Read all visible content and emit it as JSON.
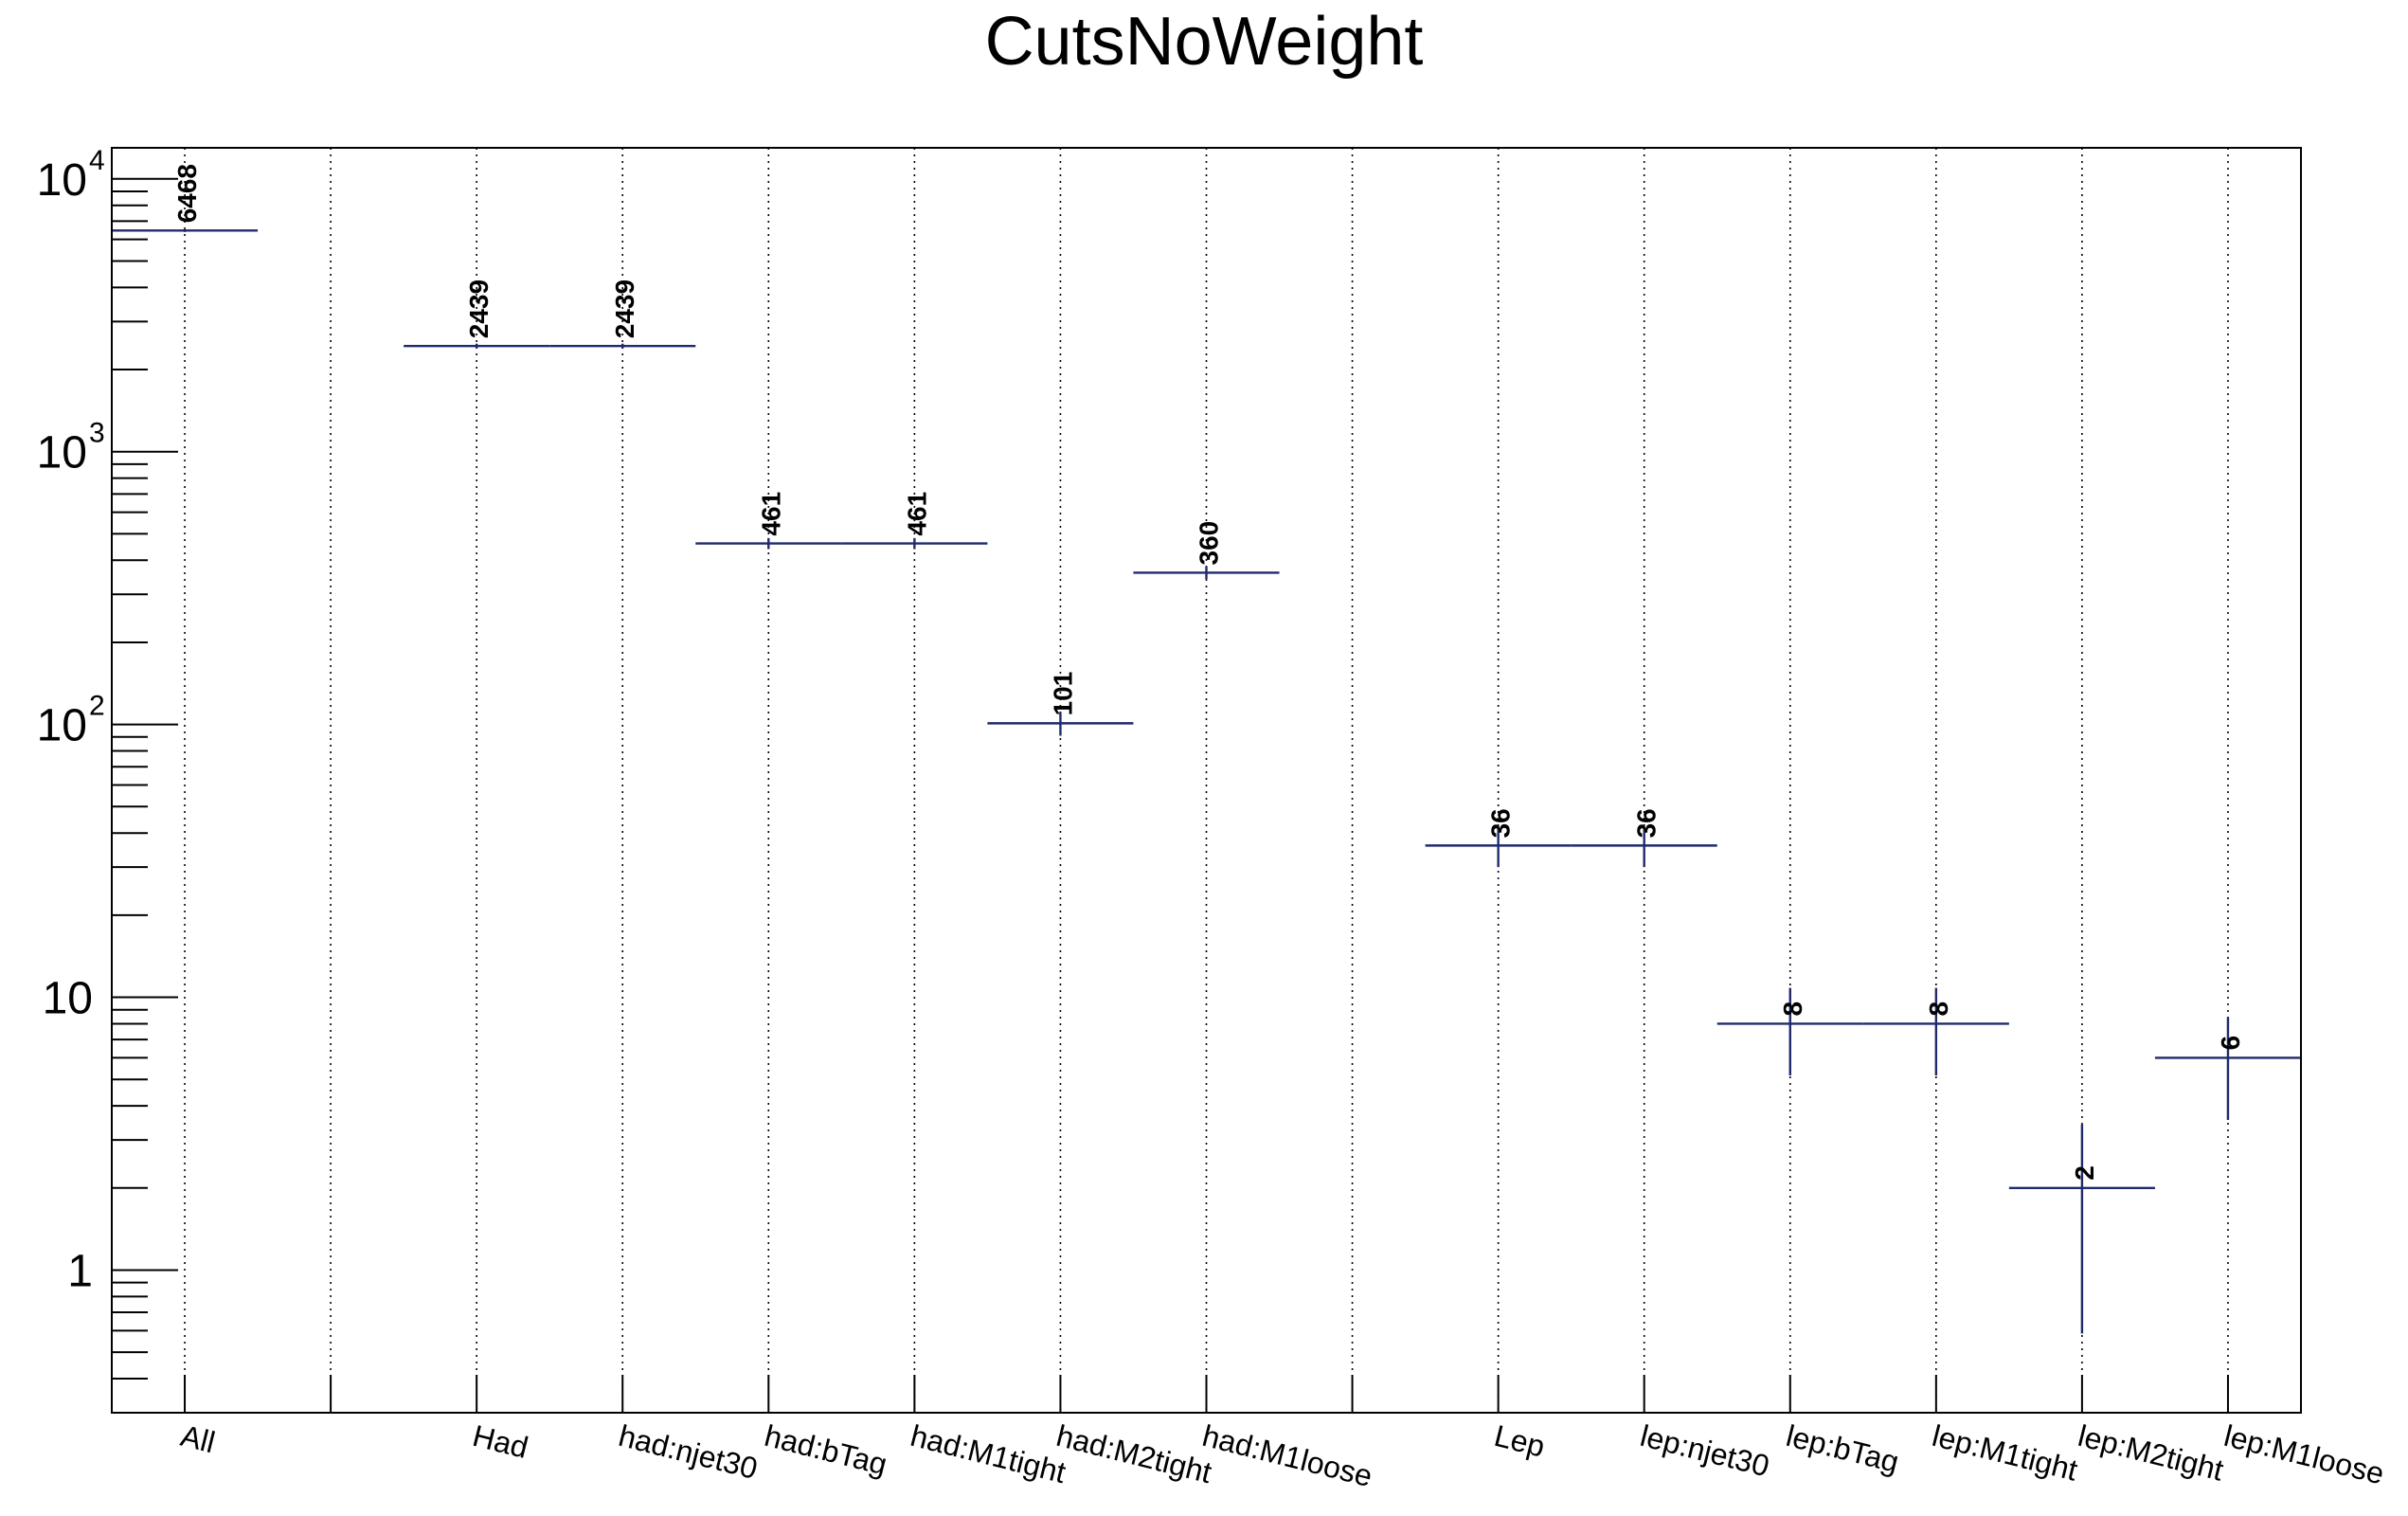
{
  "chart_data": {
    "type": "bar",
    "title": "CutsNoWeight",
    "xlabel": "",
    "ylabel": "",
    "yscale": "log",
    "ylim": [
      0.3,
      13000
    ],
    "grid": "vertical dotted",
    "y_ticks": [
      {
        "value": 1,
        "base": "1",
        "exp": ""
      },
      {
        "value": 10,
        "base": "10",
        "exp": ""
      },
      {
        "value": 100,
        "base": "10",
        "exp": "2"
      },
      {
        "value": 1000,
        "base": "10",
        "exp": "3"
      },
      {
        "value": 10000,
        "base": "10",
        "exp": "4"
      }
    ],
    "categories": [
      "All",
      "",
      "Had",
      "had:njet30",
      "had:bTag",
      "had:M1tight",
      "had:M2tight",
      "had:M1loose",
      "",
      "Lep",
      "lep:njet30",
      "lep:bTag",
      "lep:M1tight",
      "lep:M2tight",
      "lep:M1loose"
    ],
    "values": [
      6468,
      0,
      2439,
      2439,
      461,
      461,
      101,
      360,
      0,
      36,
      36,
      8,
      8,
      2,
      6
    ],
    "data_labels": [
      "6468",
      "",
      "2439",
      "2439",
      "461",
      "461",
      "101",
      "360",
      "",
      "36",
      "36",
      "8",
      "8",
      "2",
      "6"
    ],
    "colors": {
      "series": "#1f2a6b",
      "axis": "#000000"
    }
  }
}
